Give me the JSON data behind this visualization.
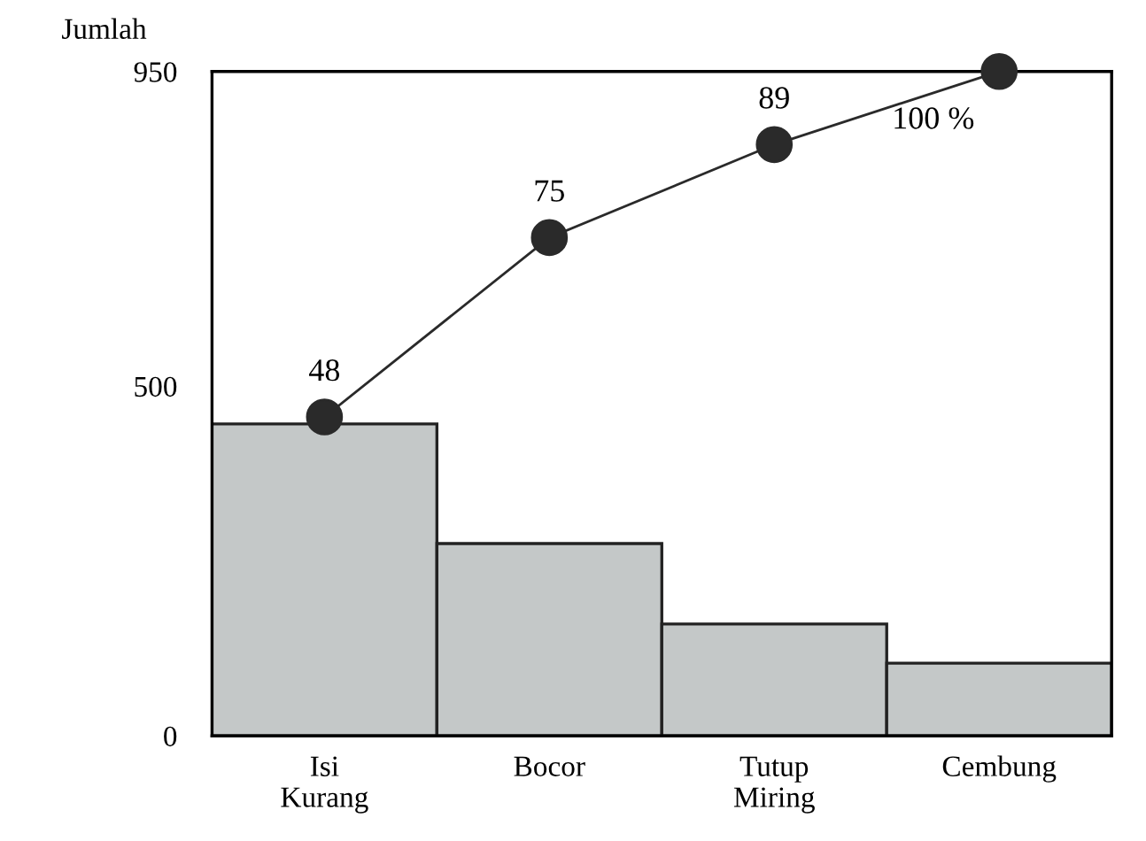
{
  "chart_data": {
    "type": "bar",
    "ylabel": "Jumlah",
    "categories": [
      "Isi\nKurang",
      "Bocor",
      "Tutup\nMiring",
      "Cembung"
    ],
    "ylim": [
      0,
      950
    ],
    "yticks": [
      0,
      500,
      950
    ],
    "y2lim": [
      0,
      100
    ],
    "grid": false,
    "series": [
      {
        "color": "#c4c8c8",
        "values": [
          446,
          275,
          160,
          104
        ]
      },
      {
        "type": "line",
        "axis": "y2",
        "color": "#2a2a2a",
        "marker": "circle",
        "values": [
          48,
          75,
          89,
          100
        ],
        "value_labels": [
          "48",
          "75",
          "89",
          "100 %"
        ]
      }
    ]
  }
}
